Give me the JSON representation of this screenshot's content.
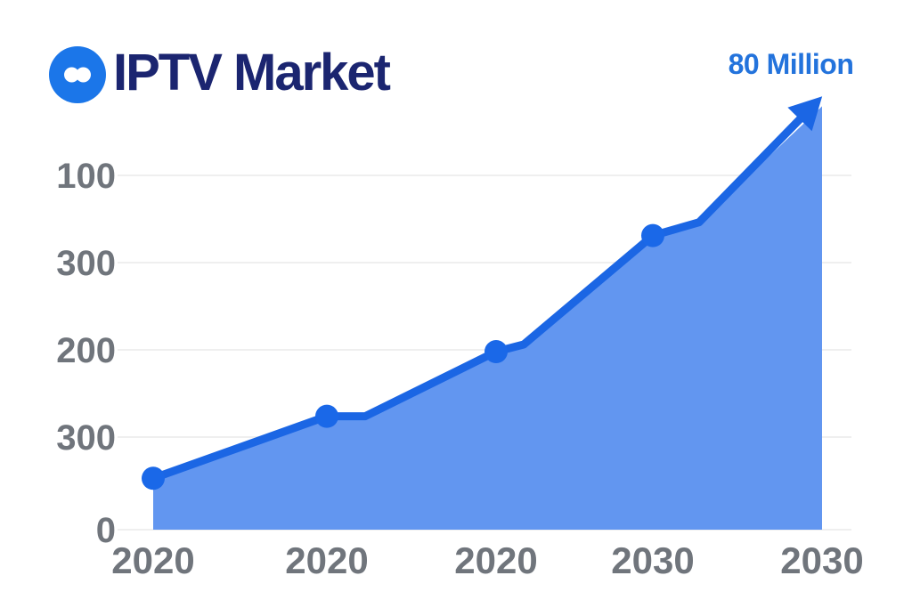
{
  "header": {
    "title": "IPTV Market",
    "logo_icon": "infinity-icon"
  },
  "annotation": "80 Million",
  "colors": {
    "line": "#1b66e4",
    "area_fill": "#6296f0",
    "dot": "#1a68e8",
    "logo_bg": "#1b76e9",
    "title_text": "#1b2570",
    "annotation_text": "#2373dc",
    "axis_text": "#70757c",
    "gridline": "#efefef"
  },
  "chart_data": {
    "type": "area",
    "title": "IPTV Market",
    "annotation": "80 Million",
    "x_tick_labels": [
      "2020",
      "2020",
      "2020",
      "2030",
      "2030"
    ],
    "y_tick_labels_top_to_bottom": [
      "100",
      "300",
      "200",
      "300",
      "0"
    ],
    "series": [
      {
        "name": "IPTV Market",
        "values_gridline_units": [
          0.58,
          1.28,
          2.01,
          3.32,
          4.78
        ]
      }
    ],
    "grid": true,
    "legend": "none",
    "end_arrow": true,
    "notes": "trend line with dots on first four points, arrowhead at top right pointing to annotation"
  }
}
